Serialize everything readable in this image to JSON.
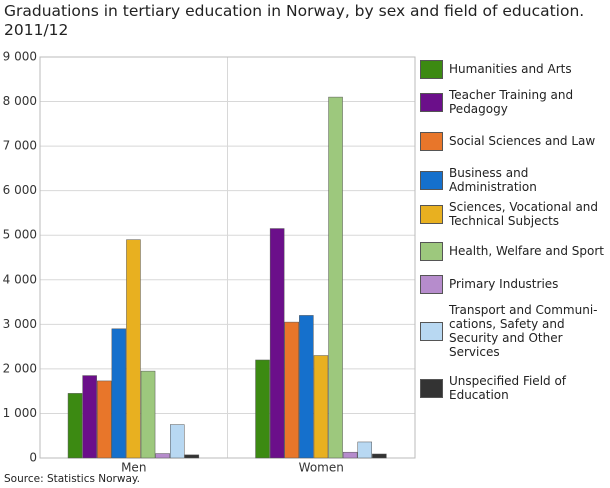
{
  "chart_data": {
    "type": "bar",
    "title": "Graduations in tertiary education in Norway, by sex and field of education. 2011/12",
    "source": "Source: Statistics Norway.",
    "categories": [
      "Men",
      "Women"
    ],
    "series": [
      {
        "name": "Humanities and Arts",
        "color": "#3c8a12",
        "values": [
          1450,
          2200
        ]
      },
      {
        "name": "Teacher Training and Pedagogy",
        "color": "#6b0f8a",
        "values": [
          1850,
          5150
        ]
      },
      {
        "name": "Social Sciences and Law",
        "color": "#e8762a",
        "values": [
          1730,
          3050
        ]
      },
      {
        "name": "Business and Administration",
        "color": "#1570cc",
        "values": [
          2900,
          3200
        ]
      },
      {
        "name": "Sciences, Vocational and Technical Subjects",
        "color": "#e8b020",
        "values": [
          4900,
          2300
        ]
      },
      {
        "name": "Health, Welfare and Sport",
        "color": "#9dc87d",
        "values": [
          1950,
          8100
        ]
      },
      {
        "name": "Primary Industries",
        "color": "#b68ccc",
        "values": [
          100,
          130
        ]
      },
      {
        "name": "Transport and Communi-cations, Safety and Security and Other Services",
        "color": "#b8d8f2",
        "values": [
          750,
          360
        ]
      },
      {
        "name": "Unspecified Field of Education",
        "color": "#333333",
        "values": [
          70,
          90
        ]
      }
    ],
    "ylim": [
      0,
      9000
    ],
    "yticks": [
      0,
      {
        "value": 1000,
        "label": "1 000"
      },
      {
        "value": 2000,
        "label": "2 000"
      },
      {
        "value": 3000,
        "label": "3 000"
      },
      {
        "value": 4000,
        "label": "4 000"
      },
      {
        "value": 5000,
        "label": "5 000"
      },
      {
        "value": 6000,
        "label": "6 000"
      },
      {
        "value": 7000,
        "label": "7 000"
      },
      {
        "value": 8000,
        "label": "8 000"
      },
      {
        "value": 9000,
        "label": "9 000"
      }
    ],
    "grid": true
  }
}
